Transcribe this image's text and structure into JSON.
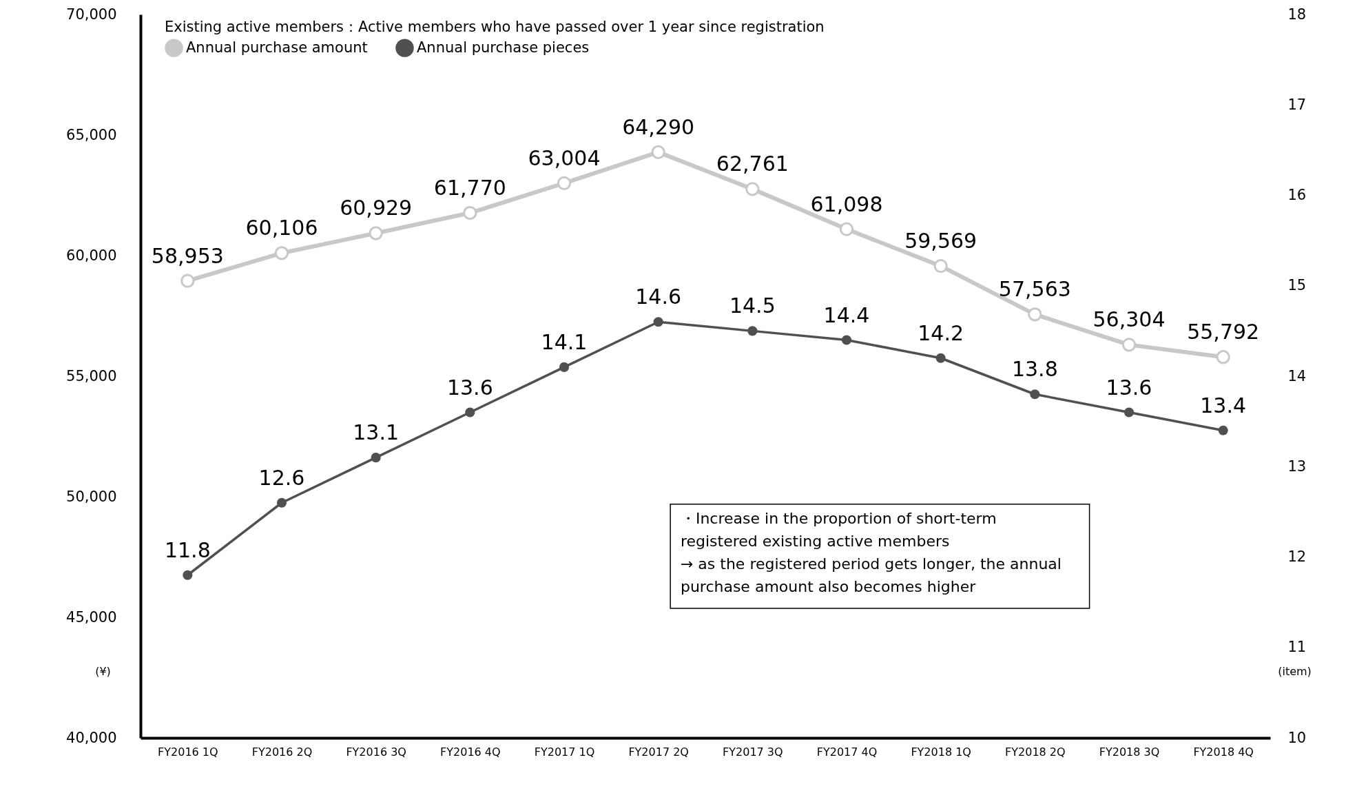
{
  "chart_data": {
    "type": "line",
    "title": "Existing active members：Active members who have passed over 1 year since registration",
    "categories": [
      "FY2016 1Q",
      "FY2016 2Q",
      "FY2016 3Q",
      "FY2016 4Q",
      "FY2017 1Q",
      "FY2017 2Q",
      "FY2017 3Q",
      "FY2017 4Q",
      "FY2018 1Q",
      "FY2018 2Q",
      "FY2018 3Q",
      "FY2018 4Q"
    ],
    "series": [
      {
        "name": "Annual purchase amount",
        "color": "#c8c8c8",
        "values": [
          58953,
          60106,
          60929,
          61770,
          63004,
          64290,
          62761,
          61098,
          59569,
          57563,
          56304,
          55792
        ],
        "value_labels": [
          "58,953",
          "60,106",
          "60,929",
          "61,770",
          "63,004",
          "64,290",
          "62,761",
          "61,098",
          "59,569",
          "57,563",
          "56,304",
          "55,792"
        ]
      },
      {
        "name": "Annual purchase pieces",
        "color": "#505050",
        "axis": "y2",
        "values": [
          11.8,
          12.6,
          13.1,
          13.6,
          14.1,
          14.6,
          14.5,
          14.4,
          14.2,
          13.8,
          13.6,
          13.4
        ]
      }
    ],
    "ylabel": "(¥)",
    "y2label": "(item)",
    "ylim": [
      40000,
      70000
    ],
    "yticks": [
      {
        "value": 40000,
        "label": "40,000"
      },
      {
        "value": 45000,
        "label": "45,000"
      },
      {
        "value": 50000,
        "label": "50,000"
      },
      {
        "value": 55000,
        "label": "55,000"
      },
      {
        "value": 60000,
        "label": "60,000"
      },
      {
        "value": 65000,
        "label": "65,000"
      },
      {
        "value": 70000,
        "label": "70,000"
      }
    ],
    "y2lim": [
      10,
      18
    ],
    "y2ticks": [
      10,
      11,
      12,
      13,
      14,
      15,
      16,
      17,
      18
    ],
    "data_labels": true,
    "grid": false,
    "legend": "top left",
    "marker": "circle",
    "line_style": "solid",
    "annotations": [
      "・Increase in the proportion of short-term\nregistered existing active members\n→ as the registered period gets longer, the annual\npurchase amount also becomes higher"
    ]
  }
}
